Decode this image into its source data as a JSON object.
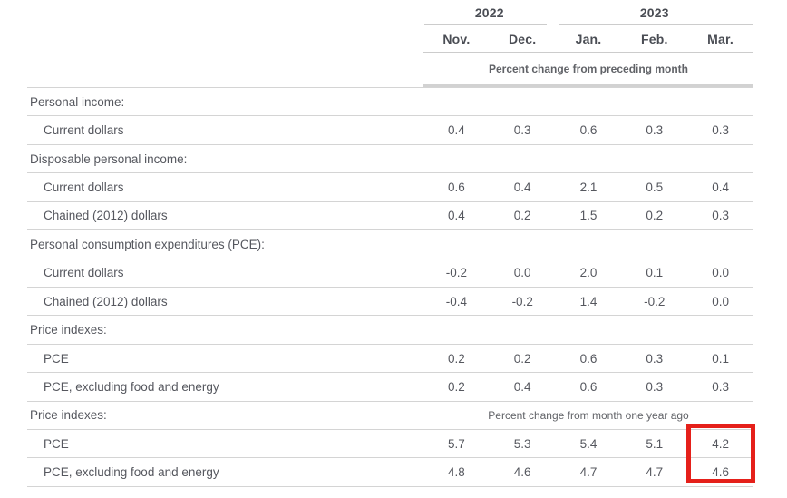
{
  "table": {
    "col_headers": {
      "year_groups": [
        {
          "label": "2022",
          "span": 2
        },
        {
          "label": "2023",
          "span": 3
        }
      ],
      "months": [
        "Nov.",
        "Dec.",
        "Jan.",
        "Feb.",
        "Mar."
      ],
      "unit_note_top": "Percent change from preceding month",
      "unit_note_bottom": "Percent change from month one year ago"
    },
    "rows": [
      {
        "type": "section",
        "label": "Personal income:"
      },
      {
        "type": "data",
        "label": "Current dollars",
        "values": [
          "0.4",
          "0.3",
          "0.6",
          "0.3",
          "0.3"
        ]
      },
      {
        "type": "section",
        "label": "Disposable personal income:"
      },
      {
        "type": "data",
        "label": "Current dollars",
        "values": [
          "0.6",
          "0.4",
          "2.1",
          "0.5",
          "0.4"
        ]
      },
      {
        "type": "data",
        "label": "Chained (2012) dollars",
        "values": [
          "0.4",
          "0.2",
          "1.5",
          "0.2",
          "0.3"
        ]
      },
      {
        "type": "section",
        "label": "Personal consumption expenditures (PCE):"
      },
      {
        "type": "data",
        "label": "Current dollars",
        "values": [
          "-0.2",
          "0.0",
          "2.0",
          "0.1",
          "0.0"
        ]
      },
      {
        "type": "data",
        "label": "Chained (2012) dollars",
        "values": [
          "-0.4",
          "-0.2",
          "1.4",
          "-0.2",
          "0.0"
        ]
      },
      {
        "type": "section",
        "label": "Price indexes:"
      },
      {
        "type": "data",
        "label": "PCE",
        "values": [
          "0.2",
          "0.2",
          "0.6",
          "0.3",
          "0.1"
        ]
      },
      {
        "type": "data",
        "label": "PCE, excluding food and energy",
        "values": [
          "0.2",
          "0.4",
          "0.6",
          "0.3",
          "0.3"
        ]
      },
      {
        "type": "section",
        "label": "Price indexes:",
        "note": "Percent change from month one year ago"
      },
      {
        "type": "data",
        "label": "PCE",
        "values": [
          "5.7",
          "5.3",
          "5.4",
          "5.1",
          "4.2"
        ]
      },
      {
        "type": "data",
        "label": "PCE, excluding food and energy",
        "values": [
          "4.8",
          "4.6",
          "4.7",
          "4.7",
          "4.6"
        ]
      }
    ],
    "highlight": {
      "column": "Mar.",
      "color": "#e5201a",
      "highlighted_values": [
        "4.2",
        "4.6"
      ]
    }
  },
  "chart_data": {
    "type": "table",
    "columns": [
      "2022 Nov.",
      "2022 Dec.",
      "2023 Jan.",
      "2023 Feb.",
      "2023 Mar."
    ],
    "sections": [
      {
        "unit": "Percent change from preceding month",
        "series": [
          {
            "name": "Personal income: Current dollars",
            "values": [
              0.4,
              0.3,
              0.6,
              0.3,
              0.3
            ]
          },
          {
            "name": "Disposable personal income: Current dollars",
            "values": [
              0.6,
              0.4,
              2.1,
              0.5,
              0.4
            ]
          },
          {
            "name": "Disposable personal income: Chained (2012) dollars",
            "values": [
              0.4,
              0.2,
              1.5,
              0.2,
              0.3
            ]
          },
          {
            "name": "Personal consumption expenditures (PCE): Current dollars",
            "values": [
              -0.2,
              0.0,
              2.0,
              0.1,
              0.0
            ]
          },
          {
            "name": "Personal consumption expenditures (PCE): Chained (2012) dollars",
            "values": [
              -0.4,
              -0.2,
              1.4,
              -0.2,
              0.0
            ]
          },
          {
            "name": "Price indexes: PCE",
            "values": [
              0.2,
              0.2,
              0.6,
              0.3,
              0.1
            ]
          },
          {
            "name": "Price indexes: PCE, excluding food and energy",
            "values": [
              0.2,
              0.4,
              0.6,
              0.3,
              0.3
            ]
          }
        ]
      },
      {
        "unit": "Percent change from month one year ago",
        "series": [
          {
            "name": "Price indexes: PCE",
            "values": [
              5.7,
              5.3,
              5.4,
              5.1,
              4.2
            ]
          },
          {
            "name": "Price indexes: PCE, excluding food and energy",
            "values": [
              4.8,
              4.6,
              4.7,
              4.7,
              4.6
            ]
          }
        ]
      }
    ],
    "annotations": [
      {
        "kind": "red-highlight-box",
        "column": "2023 Mar.",
        "rows": [
          "Price indexes: PCE (yoy)",
          "Price indexes: PCE, excluding food and energy (yoy)"
        ],
        "values": [
          4.2,
          4.6
        ]
      }
    ],
    "grid": "horizontal-row-separators",
    "legend": "none"
  }
}
